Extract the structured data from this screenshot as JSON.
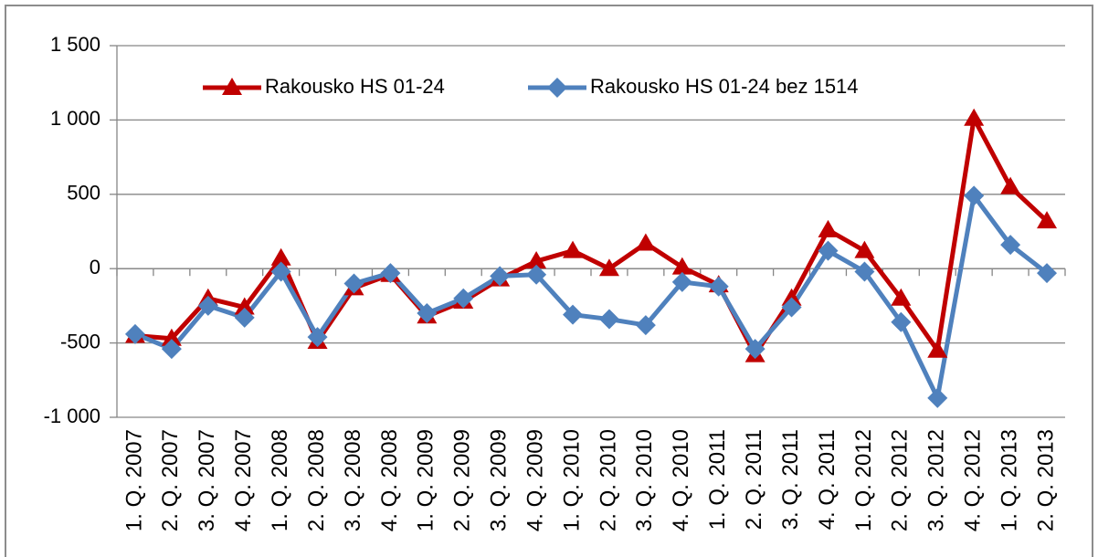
{
  "chart_data": {
    "type": "line",
    "categories": [
      "1. Q. 2007",
      "2. Q. 2007",
      "3. Q. 2007",
      "4. Q. 2007",
      "1. Q. 2008",
      "2. Q. 2008",
      "3. Q. 2008",
      "4. Q. 2008",
      "1. Q. 2009",
      "2. Q. 2009",
      "3. Q. 2009",
      "4. Q. 2009",
      "1. Q. 2010",
      "2. Q. 2010",
      "3. Q. 2010",
      "4. Q. 2010",
      "1. Q. 2011",
      "2. Q. 2011",
      "3. Q. 2011",
      "4. Q. 2011",
      "1. Q. 2012",
      "2. Q. 2012",
      "3. Q. 2012",
      "4. Q. 2012",
      "1. Q. 2013",
      "2. Q. 2013"
    ],
    "series": [
      {
        "name": "Rakousko HS 01-24",
        "color": "#c00000",
        "marker": "triangle",
        "values": [
          -450,
          -470,
          -200,
          -260,
          70,
          -490,
          -130,
          -40,
          -320,
          -220,
          -70,
          50,
          120,
          0,
          170,
          10,
          -110,
          -580,
          -200,
          260,
          120,
          -200,
          -550,
          1010,
          550,
          320
        ]
      },
      {
        "name": "Rakousko HS 01-24 bez 1514",
        "color": "#4f81bd",
        "marker": "diamond",
        "values": [
          -440,
          -540,
          -250,
          -330,
          -20,
          -460,
          -100,
          -30,
          -300,
          -200,
          -50,
          -40,
          -310,
          -340,
          -380,
          -90,
          -120,
          -540,
          -260,
          120,
          -20,
          -360,
          -870,
          490,
          160,
          -30
        ]
      }
    ],
    "ylim": [
      -1000,
      1500
    ],
    "yticks": [
      {
        "value": -1000,
        "label": "-1 000"
      },
      -500,
      0,
      500,
      {
        "value": 1000,
        "label": "1 000"
      },
      {
        "value": 1500,
        "label": "1 500"
      }
    ],
    "grid": true,
    "legend": "top"
  }
}
